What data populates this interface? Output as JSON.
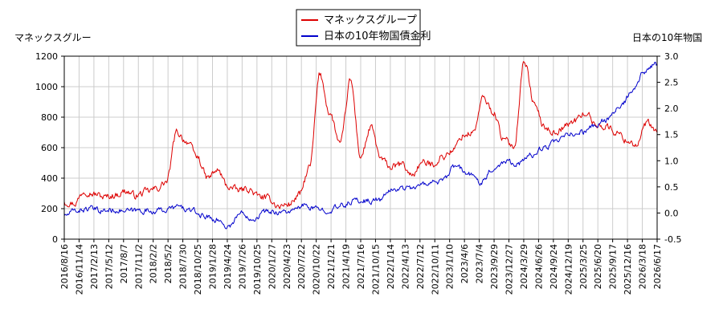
{
  "chart_data": {
    "type": "line",
    "y_left_label": "マネックスグルー",
    "y_right_label": "日本の10年物国",
    "y_left_range": [
      0,
      1200
    ],
    "y_left_ticks": [
      0,
      200,
      400,
      600,
      800,
      1000,
      1200
    ],
    "y_right_range": [
      -0.5,
      3.0
    ],
    "y_right_ticks": [
      "-0.5",
      "0.0",
      "0.5",
      "1.0",
      "1.5",
      "2.0",
      "2.5",
      "3.0"
    ],
    "x_tick_labels": [
      "2016/8/16",
      "2016/11/14",
      "2017/2/13",
      "2017/5/12",
      "2017/8/7",
      "2017/11/2",
      "2018/2/2",
      "2018/5/2",
      "2018/7/30",
      "2018/10/25",
      "2019/1/28",
      "2019/4/24",
      "2019/7/26",
      "2019/10/25",
      "2020/1/27",
      "2020/4/23",
      "2020/7/22",
      "2020/10/22",
      "2021/1/21",
      "2021/4/19",
      "2021/7/16",
      "2021/10/15",
      "2022/1/14",
      "2022/4/13",
      "2022/7/12",
      "2022/10/11",
      "2023/1/10",
      "2023/4/6",
      "2023/7/4",
      "2023/9/29",
      "2023/12/27",
      "2024/3/29",
      "2024/6/26",
      "2024/9/24",
      "2024/12/19",
      "2025/3/25",
      "2025/6/20",
      "2025/9/17",
      "2025/12/16",
      "2026/3/18",
      "2026/6/17"
    ],
    "grid": true,
    "legend_position": "top-center",
    "series": [
      {
        "name": "マネックスグループ",
        "axis": "left",
        "color": "#dd0000",
        "values": [
          245,
          235,
          320,
          295,
          275,
          290,
          315,
          285,
          310,
          330,
          375,
          700,
          640,
          540,
          400,
          450,
          345,
          320,
          330,
          280,
          265,
          215,
          230,
          290,
          470,
          1080,
          820,
          620,
          1040,
          540,
          730,
          520,
          470,
          490,
          420,
          500,
          490,
          540,
          580,
          680,
          700,
          925,
          830,
          650,
          610,
          1175,
          880,
          730,
          700,
          740,
          780,
          830,
          750,
          740,
          700,
          650,
          620,
          760,
          700
        ],
        "smoothing": 0.6
      },
      {
        "name": "日本の10年物国債金利",
        "axis": "right",
        "color": "#0000cc",
        "values": [
          -0.05,
          0.05,
          0.08,
          0.04,
          0.06,
          0.03,
          0.05,
          0.04,
          0.06,
          0.12,
          0.05,
          -0.05,
          -0.12,
          -0.26,
          0.0,
          -0.1,
          0.03,
          0.02,
          0.03,
          0.14,
          0.07,
          0.06,
          0.13,
          0.24,
          0.23,
          0.25,
          0.45,
          0.48,
          0.5,
          0.6,
          0.6,
          0.9,
          0.75,
          0.6,
          0.85,
          1.0,
          0.95,
          1.1,
          1.25,
          1.35,
          1.5,
          1.55,
          1.65,
          1.8,
          2.0,
          2.3,
          2.7,
          2.85
        ],
        "smoothing": 0.5
      }
    ]
  }
}
